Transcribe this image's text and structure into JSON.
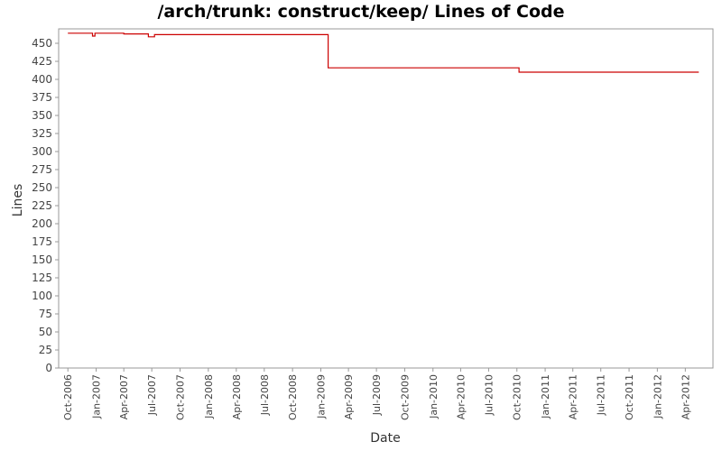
{
  "chart_data": {
    "type": "line",
    "title": "/arch/trunk: construct/keep/ Lines of Code",
    "xlabel": "Date",
    "ylabel": "Lines",
    "ylim": [
      0,
      470
    ],
    "yticks": [
      0,
      25,
      50,
      75,
      100,
      125,
      150,
      175,
      200,
      225,
      250,
      275,
      300,
      325,
      350,
      375,
      400,
      425,
      450
    ],
    "xlim": [
      "2006-09-01",
      "2012-06-30"
    ],
    "xticks": [
      {
        "label": "Oct-2006",
        "date": "2006-10-01"
      },
      {
        "label": "Jan-2007",
        "date": "2007-01-01"
      },
      {
        "label": "Apr-2007",
        "date": "2007-04-01"
      },
      {
        "label": "Jul-2007",
        "date": "2007-07-01"
      },
      {
        "label": "Oct-2007",
        "date": "2007-10-01"
      },
      {
        "label": "Jan-2008",
        "date": "2008-01-01"
      },
      {
        "label": "Apr-2008",
        "date": "2008-04-01"
      },
      {
        "label": "Jul-2008",
        "date": "2008-07-01"
      },
      {
        "label": "Oct-2008",
        "date": "2008-10-01"
      },
      {
        "label": "Jan-2009",
        "date": "2009-01-01"
      },
      {
        "label": "Apr-2009",
        "date": "2009-04-01"
      },
      {
        "label": "Jul-2009",
        "date": "2009-07-01"
      },
      {
        "label": "Oct-2009",
        "date": "2009-10-01"
      },
      {
        "label": "Jan-2010",
        "date": "2010-01-01"
      },
      {
        "label": "Apr-2010",
        "date": "2010-04-01"
      },
      {
        "label": "Jul-2010",
        "date": "2010-07-01"
      },
      {
        "label": "Oct-2010",
        "date": "2010-10-01"
      },
      {
        "label": "Jan-2011",
        "date": "2011-01-01"
      },
      {
        "label": "Apr-2011",
        "date": "2011-04-01"
      },
      {
        "label": "Jul-2011",
        "date": "2011-07-01"
      },
      {
        "label": "Oct-2011",
        "date": "2011-10-01"
      },
      {
        "label": "Jan-2012",
        "date": "2012-01-01"
      },
      {
        "label": "Apr-2012",
        "date": "2012-04-01"
      }
    ],
    "grid": false,
    "legend": "none",
    "step": true,
    "series": [
      {
        "color": "#cc0000",
        "points": [
          {
            "date": "2006-10-01",
            "value": 464
          },
          {
            "date": "2006-12-20",
            "value": 460
          },
          {
            "date": "2006-12-28",
            "value": 464
          },
          {
            "date": "2007-04-01",
            "value": 463
          },
          {
            "date": "2007-06-20",
            "value": 459
          },
          {
            "date": "2007-07-10",
            "value": 462
          },
          {
            "date": "2009-01-25",
            "value": 416
          },
          {
            "date": "2010-10-08",
            "value": 410
          },
          {
            "date": "2012-05-15",
            "value": 410
          }
        ]
      }
    ]
  }
}
